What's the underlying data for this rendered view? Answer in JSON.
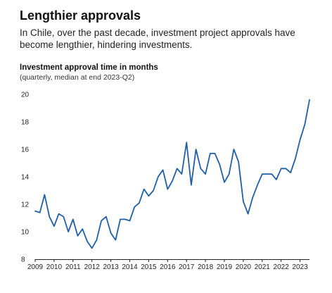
{
  "header": {
    "title": "Lengthier approvals",
    "subtitle": "In Chile, over the past decade, investment project approvals have become lengthier, hindering investments."
  },
  "chart_data": {
    "type": "line",
    "title": "Investment approval time in months",
    "subtitle": "(quarterly, median at end 2023-Q2)",
    "xlabel": "",
    "ylabel": "",
    "xlim": [
      2009,
      2023.5
    ],
    "ylim": [
      8,
      20
    ],
    "yticks": [
      8,
      10,
      12,
      14,
      16,
      18,
      20
    ],
    "xticks": [
      "2009",
      "2010",
      "2011",
      "2012",
      "2013",
      "2014",
      "2015",
      "2016",
      "2017",
      "2018",
      "2019",
      "2020",
      "2021",
      "2022",
      "2023"
    ],
    "grid": false,
    "line_color": "#1f5fa8",
    "series": [
      {
        "x": [
          2009.0,
          2009.25,
          2009.5,
          2009.75,
          2010.0,
          2010.25,
          2010.5,
          2010.75,
          2011.0,
          2011.25,
          2011.5,
          2011.75,
          2012.0,
          2012.25,
          2012.5,
          2012.75,
          2013.0,
          2013.25,
          2013.5,
          2013.75,
          2014.0,
          2014.25,
          2014.5,
          2014.75,
          2015.0,
          2015.25,
          2015.5,
          2015.75,
          2016.0,
          2016.25,
          2016.5,
          2016.75,
          2017.0,
          2017.25,
          2017.5,
          2017.75,
          2018.0,
          2018.25,
          2018.5,
          2018.75,
          2019.0,
          2019.25,
          2019.5,
          2019.75,
          2020.0,
          2020.25,
          2020.5,
          2020.75,
          2021.0,
          2021.25,
          2021.5,
          2021.75,
          2022.0,
          2022.25,
          2022.5,
          2022.75,
          2023.0,
          2023.25,
          2023.5
        ],
        "values": [
          11.5,
          11.4,
          12.7,
          11.1,
          10.4,
          11.3,
          11.1,
          10.0,
          10.9,
          9.7,
          10.2,
          9.3,
          8.8,
          9.4,
          10.8,
          11.1,
          9.9,
          9.4,
          10.9,
          10.9,
          10.8,
          11.8,
          12.1,
          13.1,
          12.6,
          13.0,
          14.0,
          14.5,
          13.1,
          13.7,
          14.6,
          14.2,
          16.5,
          13.4,
          16.0,
          14.6,
          14.2,
          15.7,
          15.7,
          14.9,
          13.6,
          14.2,
          16.0,
          15.1,
          12.2,
          11.3,
          12.5,
          13.4,
          14.2,
          14.2,
          14.2,
          13.8,
          14.6,
          14.6,
          14.3,
          15.3,
          16.7,
          17.8,
          19.6
        ]
      }
    ]
  }
}
